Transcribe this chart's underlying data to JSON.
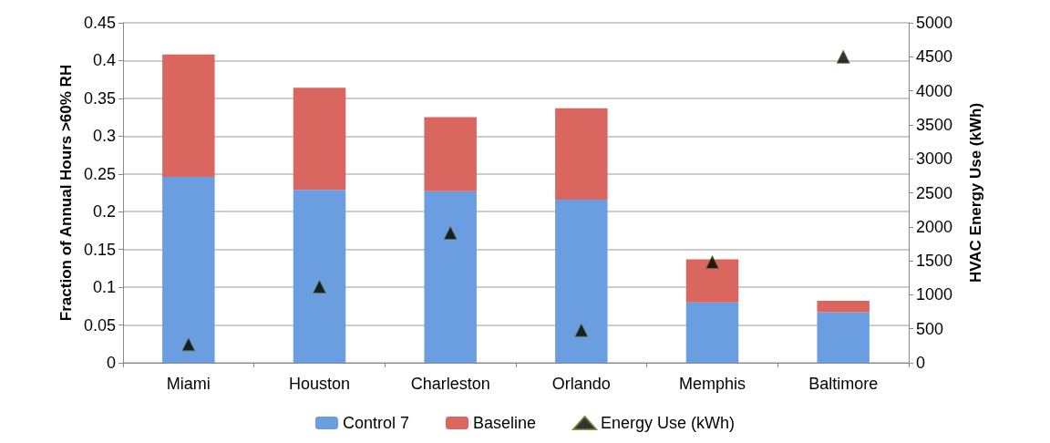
{
  "chart_data": {
    "type": "bar",
    "stacked": true,
    "ylabel": "Fraction of Annual Hours >60% RH",
    "y2label": "HVAC Energy Use (kWh)",
    "categories": [
      "Miami",
      "Houston",
      "Charleston",
      "Orlando",
      "Memphis",
      "Baltimore"
    ],
    "series": [
      {
        "name": "Control 7",
        "color": "#6a9ee0",
        "values": [
          0.246,
          0.229,
          0.227,
          0.216,
          0.08,
          0.067
        ]
      },
      {
        "name": "Baseline",
        "color": "#d9665f",
        "values": [
          0.162,
          0.135,
          0.098,
          0.121,
          0.057,
          0.015
        ]
      },
      {
        "name": "Energy Use (kWh)",
        "type": "scatter",
        "axis": "y2",
        "marker": "triangle",
        "color": "#000000",
        "values": [
          270,
          1120,
          1910,
          480,
          1480,
          4500
        ]
      }
    ],
    "ylim": [
      0,
      0.45
    ],
    "yticks": [
      0,
      0.05,
      0.1,
      0.15,
      0.2,
      0.25,
      0.3,
      0.35,
      0.4,
      0.45
    ],
    "y2lim": [
      0,
      5000
    ],
    "y2ticks": [
      0,
      500,
      1000,
      1500,
      2000,
      2500,
      3000,
      3500,
      4000,
      4500,
      5000
    ],
    "grid": "y",
    "legend": "bottom"
  }
}
